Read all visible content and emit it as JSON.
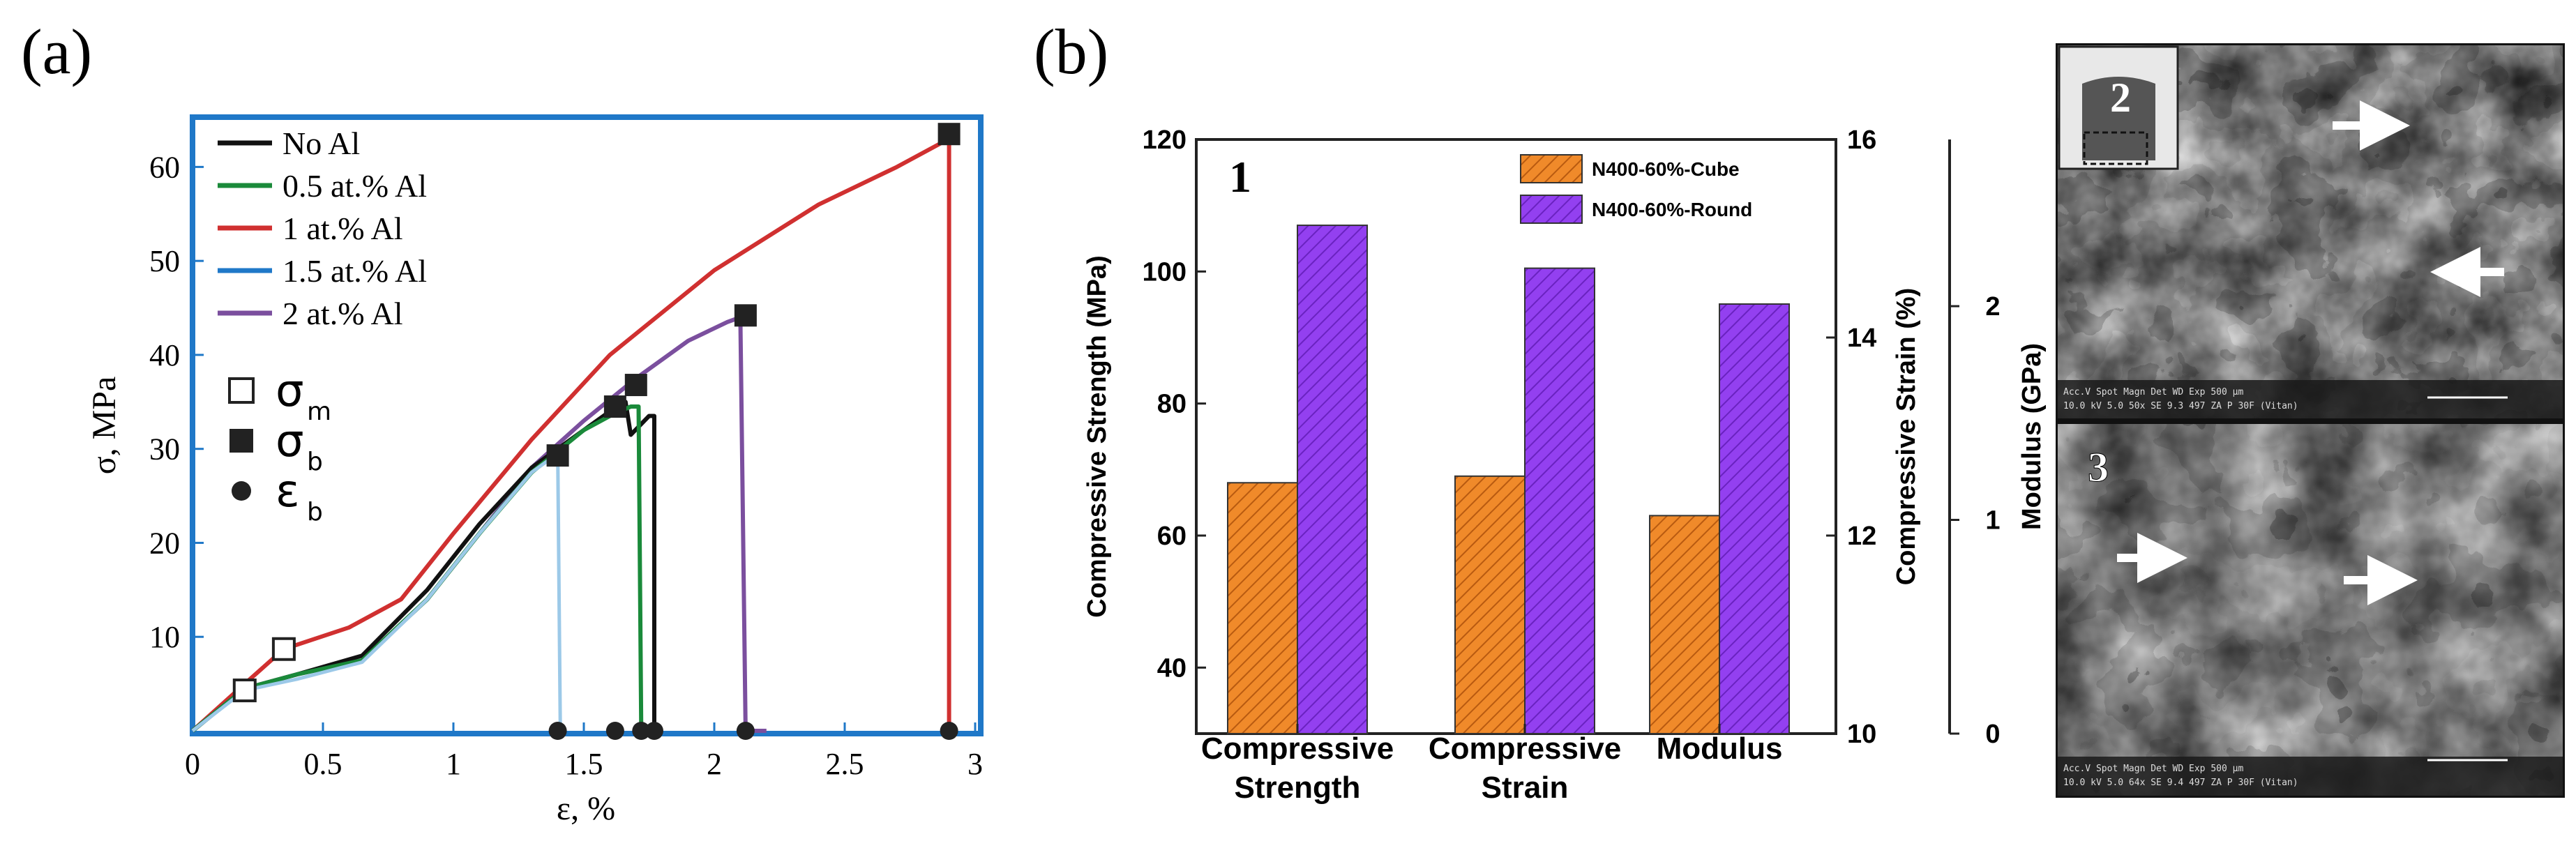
{
  "panel_labels": {
    "a": "(a)",
    "b": "(b)"
  },
  "chart_data": [
    {
      "type": "line",
      "panel": "(a)",
      "xlabel": "ε, %",
      "ylabel": "σ, MPa",
      "xlim": [
        0,
        3
      ],
      "ylim": [
        0,
        65
      ],
      "xticks": [
        "0",
        "0.5",
        "1",
        "1.5",
        "2",
        "2.5",
        "3"
      ],
      "yticks": [
        "10",
        "20",
        "30",
        "40",
        "50",
        "60"
      ],
      "grid": false,
      "legend_position": "top-left",
      "series": [
        {
          "name": "No Al",
          "color": "#111111",
          "x": [
            0,
            0.2,
            0.4,
            0.65,
            0.9,
            1.1,
            1.3,
            1.5,
            1.6,
            1.66,
            1.68,
            1.75,
            1.77,
            1.77
          ],
          "y": [
            0,
            4.5,
            6,
            8,
            15,
            22,
            28,
            32,
            34,
            35,
            31.5,
            33.5,
            33.5,
            0
          ]
        },
        {
          "name": "0.5 at.% Al",
          "color": "#1a8a3a",
          "x": [
            0,
            0.2,
            0.4,
            0.65,
            0.9,
            1.1,
            1.3,
            1.5,
            1.6,
            1.68,
            1.71,
            1.72
          ],
          "y": [
            0,
            4.5,
            6,
            7.5,
            14,
            21,
            27.5,
            32,
            33.5,
            34.5,
            34.5,
            0
          ]
        },
        {
          "name": "1 at.% Al",
          "color": "#d03030",
          "x": [
            0,
            0.2,
            0.35,
            0.6,
            0.8,
            1.0,
            1.3,
            1.6,
            2.0,
            2.4,
            2.7,
            2.9,
            2.9
          ],
          "y": [
            0,
            5,
            8.7,
            11,
            14,
            21,
            31,
            40,
            49,
            56,
            60,
            63,
            0
          ]
        },
        {
          "name": "1.5 at.% Al",
          "color": "#1f78c8",
          "x": [
            0,
            0.2,
            0.4,
            0.65,
            0.9,
            1.1,
            1.3,
            1.4,
            1.41
          ],
          "y": [
            0,
            4.3,
            5.5,
            7.3,
            14,
            21,
            27.5,
            29.5,
            0
          ]
        },
        {
          "name": "2 at.% Al",
          "color": "#7b4f9e",
          "x": [
            0,
            0.2,
            0.4,
            0.65,
            0.9,
            1.1,
            1.3,
            1.5,
            1.7,
            1.9,
            2.05,
            2.1,
            2.12,
            2.2
          ],
          "y": [
            0,
            4.5,
            6,
            7.5,
            14,
            21,
            28,
            33,
            37.5,
            41.5,
            43.5,
            44,
            0,
            0
          ]
        }
      ],
      "markers": [
        {
          "name": "σm",
          "symbol": "open-square",
          "points": [
            [
              0.2,
              4.3
            ],
            [
              0.35,
              8.7
            ]
          ]
        },
        {
          "name": "σb",
          "symbol": "filled-square",
          "points": [
            [
              1.4,
              29.3
            ],
            [
              1.62,
              34.5
            ],
            [
              1.7,
              36.8
            ],
            [
              2.12,
              44.2
            ],
            [
              2.9,
              63.5
            ]
          ]
        },
        {
          "name": "εb",
          "symbol": "filled-circle",
          "points": [
            [
              1.4,
              0
            ],
            [
              1.62,
              0
            ],
            [
              1.72,
              0
            ],
            [
              1.77,
              0
            ],
            [
              2.12,
              0
            ],
            [
              2.9,
              0
            ]
          ]
        }
      ],
      "marker_legend": [
        {
          "symbol": "σ",
          "sub": "m"
        },
        {
          "symbol": "σ",
          "sub": "b"
        },
        {
          "symbol": "ε",
          "sub": "b"
        }
      ]
    },
    {
      "type": "bar",
      "panel": "(b)",
      "inner_label": "1",
      "categories": [
        "Compressive Strength",
        "Compressive Strain",
        "Modulus"
      ],
      "category_lines": [
        [
          "Compressive",
          "Strength"
        ],
        [
          "Compressive",
          "Strain"
        ],
        [
          "Modulus"
        ]
      ],
      "series": [
        {
          "name": "N400-60%-Cube",
          "color": "#f08a2a",
          "values": [
            68,
            12.6,
            1.02
          ]
        },
        {
          "name": "N400-60%-Round",
          "color": "#9340f0",
          "values": [
            107,
            14.7,
            2.01
          ]
        }
      ],
      "series_axis": [
        {
          "ylabel": "Compressive Strength (MPa)",
          "ylim": [
            30,
            120
          ],
          "yticks": [
            "40",
            "60",
            "80",
            "100",
            "120"
          ]
        },
        {
          "ylabel": "Compressive Strain (%)",
          "ylim": [
            10,
            16
          ],
          "yticks": [
            "10",
            "12",
            "14",
            "16"
          ]
        },
        {
          "ylabel": "Modulus (GPa)",
          "ylim": [
            0,
            2.78
          ],
          "yticks": [
            "0",
            "1",
            "2"
          ]
        }
      ],
      "legend_position": "top-center"
    }
  ],
  "micrographs": [
    {
      "label": "2",
      "scale_bar": "500 μm",
      "info_text": "Acc.V  Spot Magn   Det  WD  Exp                  500 μm",
      "info_text2": "10.0 kV 5.0   50x     SE  9.3  497   ZA P 30F (Vitan)"
    },
    {
      "label": "3",
      "scale_bar": "500 μm",
      "info_text": "Acc.V  Spot Magn   Det  WD  Exp                  500 μm",
      "info_text2": "10.0 kV 5.0   64x     SE  9.4  497   ZA P 30F (Vitan)"
    }
  ]
}
